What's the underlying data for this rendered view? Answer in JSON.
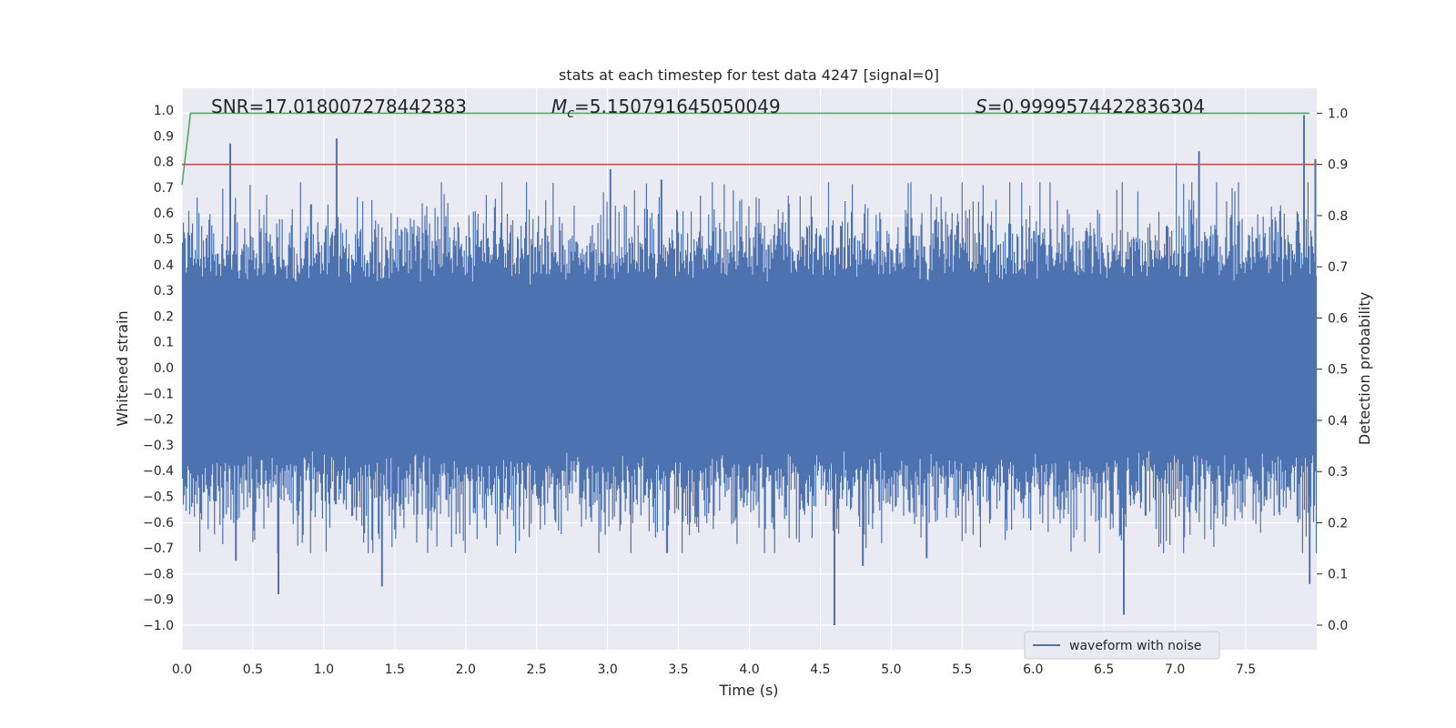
{
  "chart_data": {
    "type": "line",
    "title": "stats at each timestep for test data 4247 [signal=0]",
    "xlabel": "Time (s)",
    "ylabel": "Whitened strain",
    "ylabel_right": "Detection probability",
    "xlim": [
      0.0,
      8.0
    ],
    "ylim": [
      -1.1,
      1.1
    ],
    "ylim_right": [
      -0.05,
      1.04
    ],
    "x_ticks": [
      "0.0",
      "0.5",
      "1.0",
      "1.5",
      "2.0",
      "2.5",
      "3.0",
      "3.5",
      "4.0",
      "4.5",
      "5.0",
      "5.5",
      "6.0",
      "6.5",
      "7.0",
      "7.5"
    ],
    "y_ticks": [
      "1.0",
      "0.9",
      "0.8",
      "0.7",
      "0.6",
      "0.5",
      "0.4",
      "0.3",
      "0.2",
      "0.1",
      "0.0",
      "−0.1",
      "−0.2",
      "−0.3",
      "−0.4",
      "−0.5",
      "−0.6",
      "−0.7",
      "−0.8",
      "−0.9",
      "−1.0"
    ],
    "y_right_ticks": [
      "1.0",
      "0.9",
      "0.8",
      "0.7",
      "0.6",
      "0.5",
      "0.4",
      "0.3",
      "0.2",
      "0.1",
      "0.0"
    ],
    "grid": true,
    "legend": {
      "position": "bottom-right",
      "entries": [
        "waveform with noise"
      ]
    },
    "annotations": {
      "snr_label": "SNR=17.018007278442383",
      "mc_symbol": "M",
      "mc_sub": "c",
      "mc_value": "=5.150791645050049",
      "s_symbol": "S",
      "s_value": "=0.9999574422836304"
    },
    "series": [
      {
        "name": "waveform with noise",
        "axis": "left",
        "color": "#4c72b0",
        "description_values": "noise, mostly within ±0.5, extremes about 0.98 and −1.0",
        "spikes": [
          {
            "x": 0.34,
            "y": 0.87
          },
          {
            "x": 1.09,
            "y": 0.89
          },
          {
            "x": 3.02,
            "y": 0.77
          },
          {
            "x": 3.38,
            "y": 0.73
          },
          {
            "x": 7.17,
            "y": 0.84
          },
          {
            "x": 7.91,
            "y": 0.98
          },
          {
            "x": 7.99,
            "y": 0.81
          },
          {
            "x": 0.68,
            "y": -0.88
          },
          {
            "x": 1.41,
            "y": -0.85
          },
          {
            "x": 4.6,
            "y": -1.0
          },
          {
            "x": 6.64,
            "y": -0.96
          },
          {
            "x": 7.95,
            "y": -0.84
          },
          {
            "x": 0.38,
            "y": -0.75
          },
          {
            "x": 4.8,
            "y": -0.77
          },
          {
            "x": 5.25,
            "y": -0.74
          }
        ]
      },
      {
        "name": "",
        "axis": "right",
        "color": "#55a868",
        "x": [
          0.0,
          0.06,
          0.1,
          1.0,
          3.0,
          5.0,
          7.0,
          7.95
        ],
        "y": [
          0.86,
          1.0,
          1.0,
          1.0,
          1.0,
          1.0,
          1.0,
          1.0
        ]
      },
      {
        "name": "",
        "axis": "right",
        "color": "#c44e52",
        "x": [
          0.0,
          8.0
        ],
        "y": [
          0.9,
          0.9
        ]
      }
    ]
  }
}
